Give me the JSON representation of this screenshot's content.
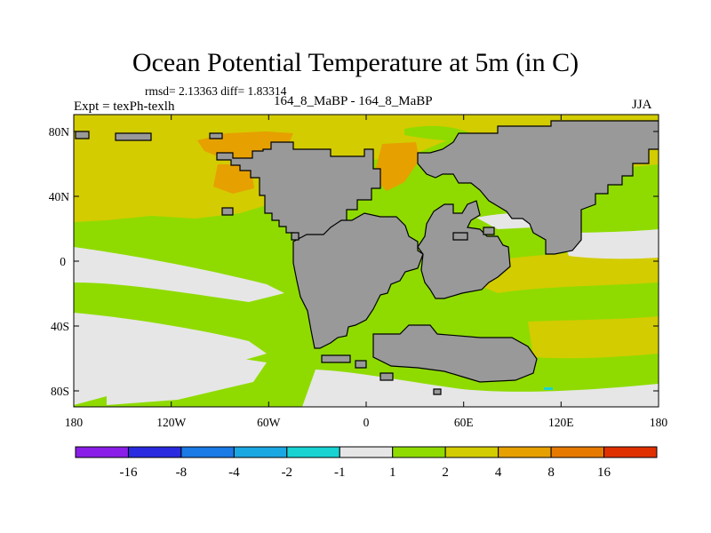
{
  "title": "Ocean Potential Temperature at 5m (in C)",
  "stats": "rmsd= 2.13363 diff= 1.83314",
  "experiment": "Expt = texPh-texlh",
  "difference_label": "164_8_MaBP - 164_8_MaBP",
  "season": "JJA",
  "axes": {
    "x_ticks": [
      "180",
      "120W",
      "60W",
      "0",
      "60E",
      "120E",
      "180"
    ],
    "y_ticks": [
      "80N",
      "40N",
      "0",
      "40S",
      "80S"
    ]
  },
  "colorbar": {
    "labels": [
      "-16",
      "-8",
      "-4",
      "-2",
      "-1",
      "1",
      "2",
      "4",
      "8",
      "16"
    ],
    "colors": [
      "#8a1ee8",
      "#2a2ae0",
      "#1a7ae6",
      "#1aa8e2",
      "#19d3d3",
      "#e6e6e6",
      "#8fdb00",
      "#d3cc00",
      "#e6a000",
      "#e67a00",
      "#e03000"
    ]
  },
  "map_colors": {
    "land": "#999999",
    "near_zero": "#e6e6e6",
    "band_1_2": "#8fdb00",
    "band_2_4": "#d3cc00",
    "band_4_8": "#e6a000",
    "band_8_16": "#e67a00",
    "band_neg_2_1": "#19d3d3"
  }
}
